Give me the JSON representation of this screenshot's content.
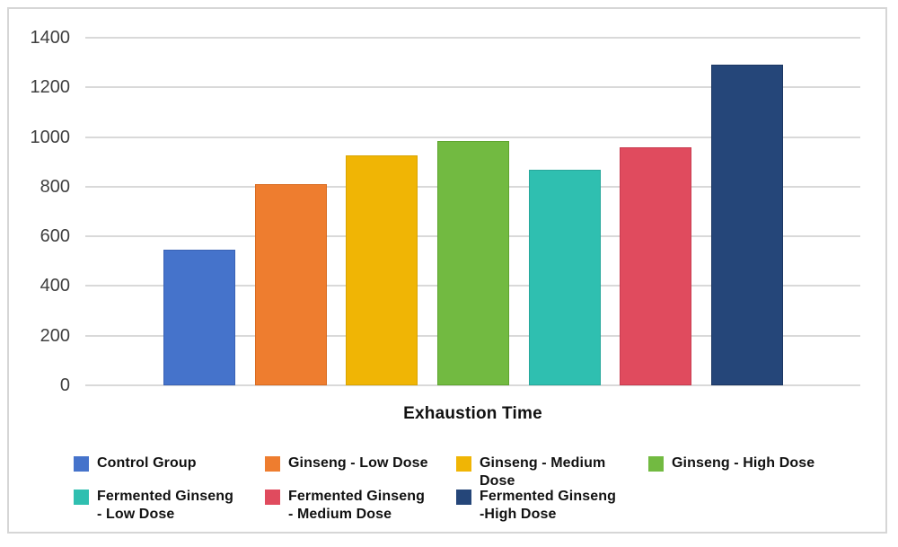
{
  "chart_data": {
    "type": "bar",
    "title": "",
    "xlabel": "Exhaustion Time",
    "ylabel": "",
    "ylim": [
      0,
      1400
    ],
    "ytick_interval": 200,
    "yticks": [
      0,
      200,
      400,
      600,
      800,
      1000,
      1200,
      1400
    ],
    "grid": true,
    "legend_position": "bottom",
    "categories": [
      "Control Group",
      "Ginseng - Low Dose",
      "Ginseng - Medium Dose",
      "Ginseng - High Dose",
      "Fermented Ginseng - Low Dose",
      "Fermented Ginseng - Medium Dose",
      "Fermented Ginseng - High Dose"
    ],
    "series": [
      {
        "name": "Control Group",
        "legend_label": "Control Group",
        "value": 545,
        "color": "#4573cb",
        "border_color": "#3a62b5"
      },
      {
        "name": "Ginseng - Low Dose",
        "legend_label": "Ginseng - Low Dose",
        "value": 810,
        "color": "#ee7d2f",
        "border_color": "#d96b20"
      },
      {
        "name": "Ginseng - Medium Dose",
        "legend_label": "Ginseng - Medium\nDose",
        "value": 925,
        "color": "#f0b505",
        "border_color": "#d9a400"
      },
      {
        "name": "Ginseng - High Dose",
        "legend_label": "Ginseng - High Dose",
        "value": 985,
        "color": "#72ba41",
        "border_color": "#5fa52f"
      },
      {
        "name": "Fermented Ginseng - Low Dose",
        "legend_label": "Fermented Ginseng\n - Low Dose",
        "value": 870,
        "color": "#2fbfb0",
        "border_color": "#27a89b"
      },
      {
        "name": "Fermented Ginseng - Medium Dose",
        "legend_label": "Fermented Ginseng\n - Medium Dose",
        "value": 960,
        "color": "#e04b5e",
        "border_color": "#c83c50"
      },
      {
        "name": "Fermented Ginseng - High Dose",
        "legend_label": "Fermented Ginseng\n-High Dose",
        "value": 1290,
        "color": "#254679",
        "border_color": "#1c3763"
      }
    ],
    "colors": {
      "background": "#ffffff",
      "frame_border": "#d6d6d6",
      "gridline": "#d9d9d9",
      "tick_label": "#3f3f3f",
      "text": "#111111"
    }
  }
}
